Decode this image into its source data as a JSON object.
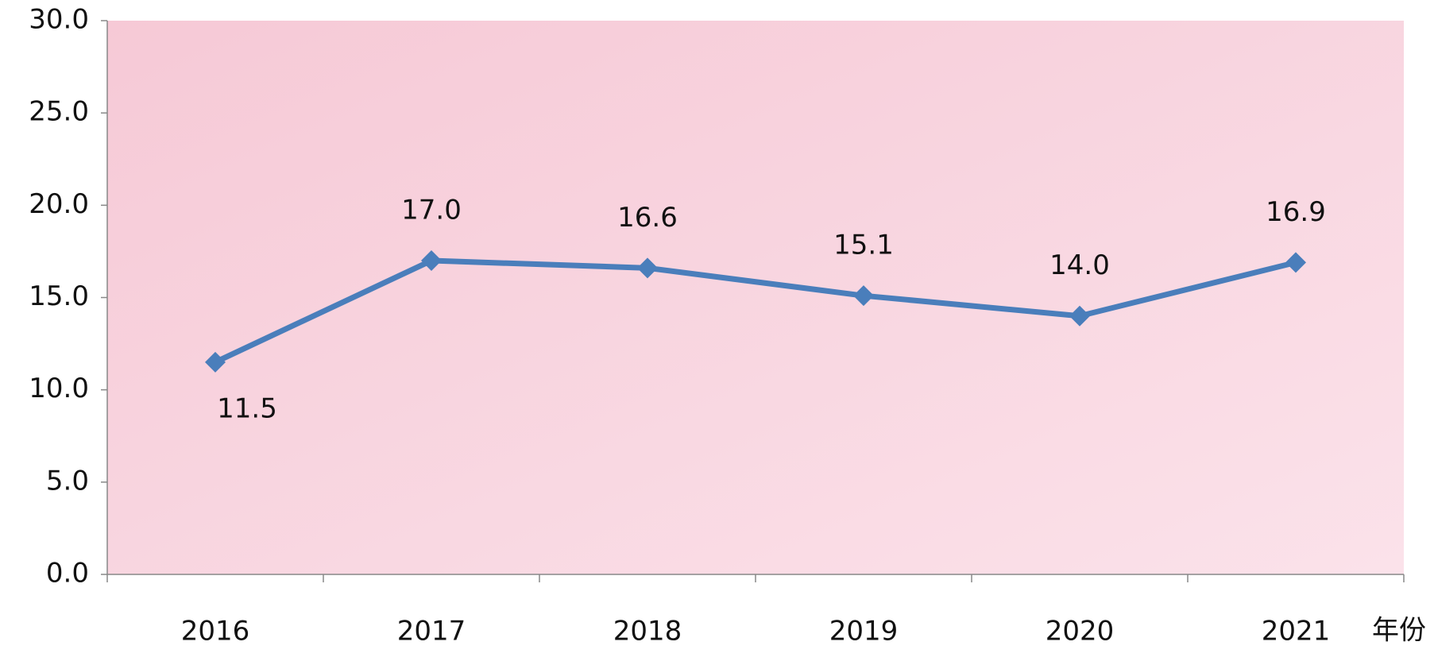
{
  "chart_data": {
    "type": "line",
    "categories": [
      "2016",
      "2017",
      "2018",
      "2019",
      "2020",
      "2021"
    ],
    "series": [
      {
        "color": "#4a7ebb",
        "values": [
          11.5,
          17.0,
          16.6,
          15.1,
          14.0,
          16.9
        ],
        "value_labels": [
          "11.5",
          "17.0",
          "16.6",
          "15.1",
          "14.0",
          "16.9"
        ]
      }
    ],
    "x_label": "年份",
    "ylim": [
      0,
      30
    ],
    "yticks": [
      {
        "value": 0,
        "label": "0.0"
      },
      {
        "value": 5,
        "label": "5.0"
      },
      {
        "value": 10,
        "label": "10.0"
      },
      {
        "value": 15,
        "label": "15.0"
      },
      {
        "value": 20,
        "label": "20.0"
      },
      {
        "value": 25,
        "label": "25.0"
      },
      {
        "value": 30,
        "label": "30.0"
      }
    ],
    "grid": false
  }
}
